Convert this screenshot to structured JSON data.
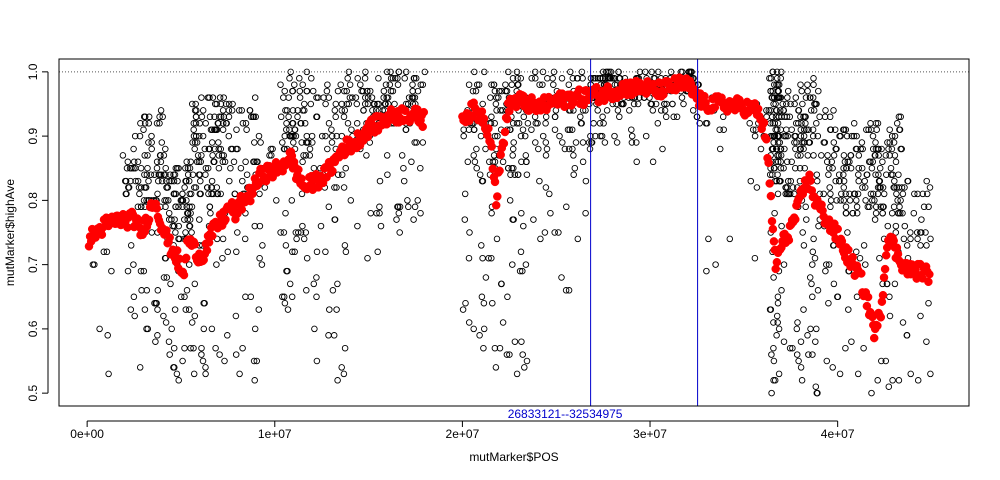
{
  "chart_data": {
    "type": "scatter",
    "title": "",
    "xlabel": "mutMarker$POS",
    "ylabel": "mutMarker$highAve",
    "xlim": [
      -1500000,
      47000000
    ],
    "ylim": [
      0.48,
      1.02
    ],
    "x_ticks": [
      0,
      10000000,
      20000000,
      30000000,
      40000000
    ],
    "x_tick_labels": [
      "0e+00",
      "1e+07",
      "2e+07",
      "3e+07",
      "4e+07"
    ],
    "y_ticks": [
      0.5,
      0.6,
      0.7,
      0.8,
      0.9,
      1.0
    ],
    "y_tick_labels": [
      "0.5",
      "0.6",
      "0.7",
      "0.8",
      "0.9",
      "1.0"
    ],
    "grid": false,
    "reference_line": {
      "y": 1.0,
      "style": "dotted",
      "color": "#555555"
    },
    "interval": {
      "start": 26833121,
      "end": 32534975,
      "label": "26833121--32534975",
      "color": "#0000cc"
    },
    "series": [
      {
        "marker": "open-circle",
        "color": "#000000",
        "segments": [
          [
            100000,
            1300000,
            0.5,
            0.78,
            8
          ],
          [
            1900000,
            2600000,
            0.62,
            0.9,
            25
          ],
          [
            2700000,
            4200000,
            0.5,
            0.94,
            90
          ],
          [
            4200000,
            5600000,
            0.5,
            0.86,
            100
          ],
          [
            5600000,
            7400000,
            0.52,
            0.96,
            120
          ],
          [
            7400000,
            9300000,
            0.52,
            0.96,
            70
          ],
          [
            9300000,
            10200000,
            0.7,
            0.88,
            12
          ],
          [
            10300000,
            12000000,
            0.62,
            1.0,
            90
          ],
          [
            12000000,
            13800000,
            0.5,
            0.98,
            70
          ],
          [
            13800000,
            15800000,
            0.7,
            1.0,
            60
          ],
          [
            15800000,
            18000000,
            0.75,
            1.0,
            90
          ],
          [
            20000000,
            20800000,
            0.58,
            1.0,
            30
          ],
          [
            20800000,
            23500000,
            0.53,
            1.0,
            130
          ],
          [
            23500000,
            25000000,
            0.74,
            1.0,
            45
          ],
          [
            25000000,
            26800000,
            0.66,
            1.0,
            50
          ],
          [
            26800000,
            28000000,
            0.88,
            1.0,
            70
          ],
          [
            28000000,
            31000000,
            0.85,
            1.0,
            90
          ],
          [
            31000000,
            32600000,
            0.92,
            1.0,
            50
          ],
          [
            32600000,
            34500000,
            0.64,
            1.0,
            15
          ],
          [
            35000000,
            36400000,
            0.7,
            1.0,
            15
          ],
          [
            36400000,
            37000000,
            0.5,
            1.0,
            110
          ],
          [
            37000000,
            38000000,
            0.5,
            0.97,
            60
          ],
          [
            38000000,
            39000000,
            0.5,
            0.99,
            80
          ],
          [
            39000000,
            40400000,
            0.5,
            0.95,
            60
          ],
          [
            40400000,
            42000000,
            0.5,
            0.92,
            80
          ],
          [
            42000000,
            43500000,
            0.5,
            0.93,
            90
          ],
          [
            43500000,
            45000000,
            0.52,
            0.83,
            35
          ]
        ]
      },
      {
        "marker": "filled-circle",
        "color": "#ff0000",
        "points": [
          [
            100000,
            0.74
          ],
          [
            500000,
            0.75
          ],
          [
            900000,
            0.76
          ],
          [
            1200000,
            0.765
          ],
          [
            1800000,
            0.77
          ],
          [
            2500000,
            0.77
          ],
          [
            2900000,
            0.75
          ],
          [
            3300000,
            0.78
          ],
          [
            3600000,
            0.8
          ],
          [
            4000000,
            0.76
          ],
          [
            4400000,
            0.73
          ],
          [
            4800000,
            0.71
          ],
          [
            5100000,
            0.68
          ],
          [
            5400000,
            0.74
          ],
          [
            5800000,
            0.72
          ],
          [
            6100000,
            0.71
          ],
          [
            6500000,
            0.74
          ],
          [
            6900000,
            0.76
          ],
          [
            7200000,
            0.77
          ],
          [
            7600000,
            0.79
          ],
          [
            7900000,
            0.78
          ],
          [
            8300000,
            0.8
          ],
          [
            8700000,
            0.81
          ],
          [
            9300000,
            0.84
          ],
          [
            10300000,
            0.85
          ],
          [
            10800000,
            0.87
          ],
          [
            11200000,
            0.84
          ],
          [
            11600000,
            0.82
          ],
          [
            12200000,
            0.83
          ],
          [
            12700000,
            0.84
          ],
          [
            13200000,
            0.86
          ],
          [
            13600000,
            0.88
          ],
          [
            14300000,
            0.89
          ],
          [
            14900000,
            0.91
          ],
          [
            15500000,
            0.92
          ],
          [
            16200000,
            0.93
          ],
          [
            16900000,
            0.935
          ],
          [
            17600000,
            0.93
          ],
          [
            18000000,
            0.925
          ],
          [
            20000000,
            0.93
          ],
          [
            20600000,
            0.94
          ],
          [
            21100000,
            0.93
          ],
          [
            21500000,
            0.9
          ],
          [
            21800000,
            0.8
          ],
          [
            22100000,
            0.88
          ],
          [
            22500000,
            0.95
          ],
          [
            23000000,
            0.955
          ],
          [
            23500000,
            0.95
          ],
          [
            24000000,
            0.945
          ],
          [
            24600000,
            0.95
          ],
          [
            25200000,
            0.955
          ],
          [
            25800000,
            0.96
          ],
          [
            26400000,
            0.96
          ],
          [
            26900000,
            0.965
          ],
          [
            27500000,
            0.965
          ],
          [
            28000000,
            0.97
          ],
          [
            28600000,
            0.975
          ],
          [
            29200000,
            0.975
          ],
          [
            29800000,
            0.975
          ],
          [
            30300000,
            0.97
          ],
          [
            30900000,
            0.975
          ],
          [
            31500000,
            0.98
          ],
          [
            32000000,
            0.98
          ],
          [
            32500000,
            0.96
          ],
          [
            32900000,
            0.95
          ],
          [
            34000000,
            0.95
          ],
          [
            35000000,
            0.945
          ],
          [
            35700000,
            0.94
          ],
          [
            36200000,
            0.9
          ],
          [
            36500000,
            0.77
          ],
          [
            36700000,
            0.7
          ],
          [
            37000000,
            0.73
          ],
          [
            37400000,
            0.75
          ],
          [
            37800000,
            0.78
          ],
          [
            38200000,
            0.82
          ],
          [
            38500000,
            0.83
          ],
          [
            38800000,
            0.8
          ],
          [
            39200000,
            0.78
          ],
          [
            39600000,
            0.76
          ],
          [
            40000000,
            0.745
          ],
          [
            40400000,
            0.72
          ],
          [
            40800000,
            0.7
          ],
          [
            41200000,
            0.68
          ],
          [
            41500000,
            0.65
          ],
          [
            41800000,
            0.62
          ],
          [
            42000000,
            0.59
          ],
          [
            42300000,
            0.63
          ],
          [
            42700000,
            0.75
          ],
          [
            43100000,
            0.72
          ],
          [
            43500000,
            0.7
          ],
          [
            43900000,
            0.69
          ],
          [
            44400000,
            0.69
          ],
          [
            44900000,
            0.685
          ]
        ]
      }
    ]
  }
}
